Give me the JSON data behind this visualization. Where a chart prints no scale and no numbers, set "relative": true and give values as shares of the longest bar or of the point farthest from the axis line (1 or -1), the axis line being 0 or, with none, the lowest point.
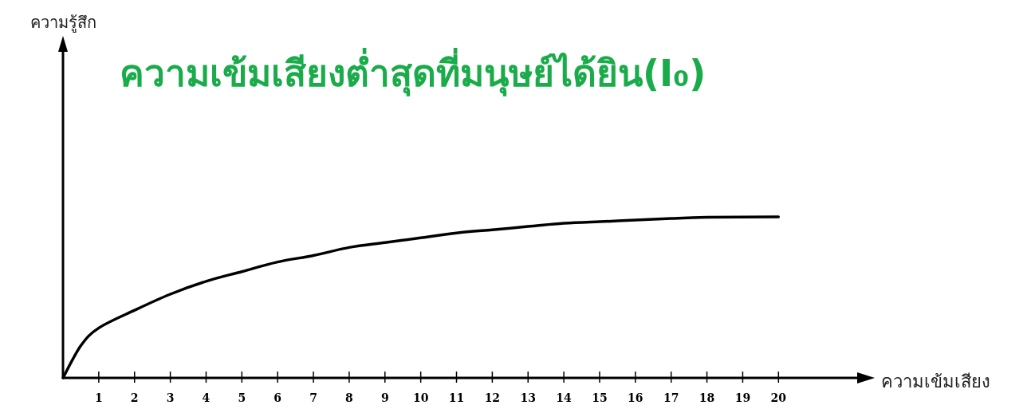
{
  "chart_data": {
    "type": "line",
    "title": "ความเข้มเสียงต่ำสุดที่มนุษย์ได้ยิน(I₀)",
    "xlabel": "ความเข้มเสียง",
    "annotations": [
      "ความรู้สึก"
    ],
    "relative": true,
    "tick_labels": "x",
    "grid": false,
    "x": [
      0,
      0.5,
      1,
      2,
      3,
      4,
      5,
      6,
      7,
      8,
      9,
      10,
      11,
      12,
      13,
      14,
      15,
      16,
      17,
      18,
      20
    ],
    "series": [
      {
        "color": "#000000",
        "values": [
          0,
          0.2,
          0.31,
          0.42,
          0.52,
          0.6,
          0.66,
          0.72,
          0.76,
          0.81,
          0.84,
          0.87,
          0.9,
          0.92,
          0.94,
          0.96,
          0.97,
          0.98,
          0.99,
          0.997,
          1
        ]
      }
    ],
    "xlim": [
      0,
      22.2
    ],
    "xticks": [
      1,
      2,
      3,
      4,
      5,
      6,
      7,
      8,
      9,
      10,
      11,
      12,
      13,
      14,
      15,
      16,
      17,
      18,
      19,
      20
    ]
  }
}
